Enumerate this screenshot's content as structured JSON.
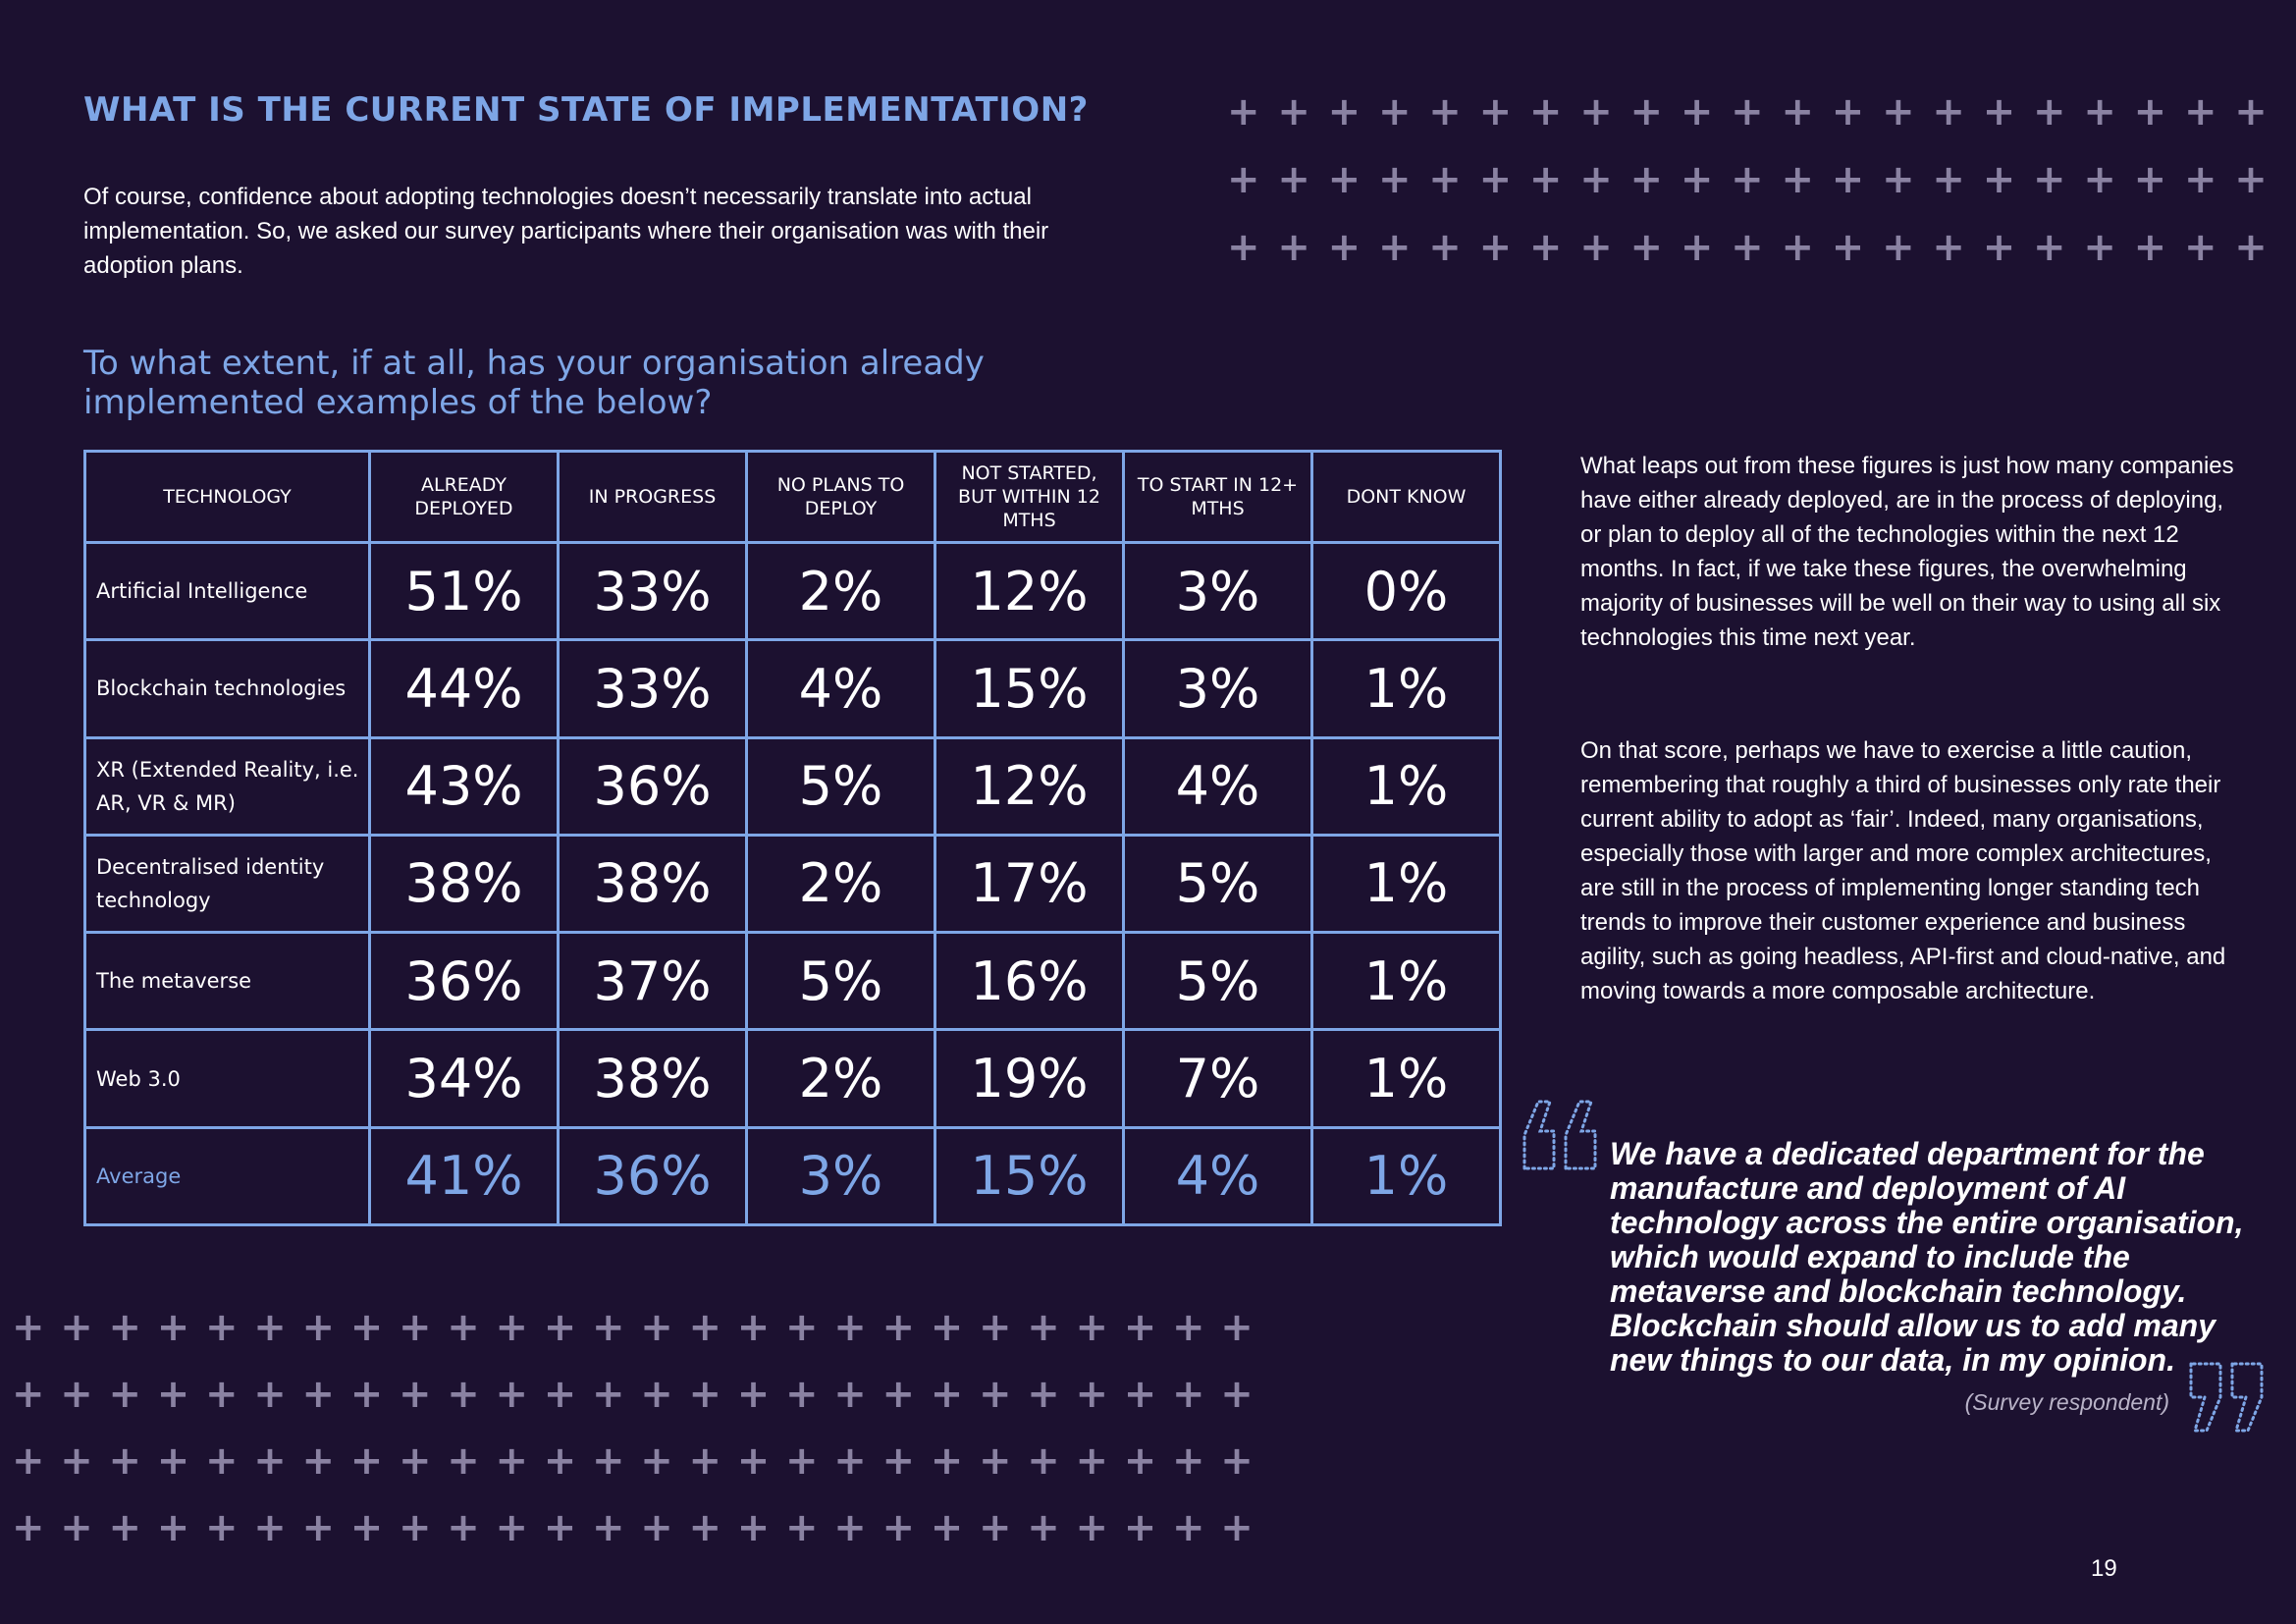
{
  "heading": "WHAT IS THE CURRENT STATE OF IMPLEMENTATION?",
  "intro": "Of course, confidence about adopting technologies doesn’t necessarily translate into actual implementation. So, we asked our survey participants where their organisation was with their adoption plans.",
  "question": "To what extent, if at all, has your organisation already implemented examples of the below?",
  "table": {
    "headers": [
      "TECHNOLOGY",
      "ALREADY DEPLOYED",
      "IN PROGRESS",
      "NO PLANS TO DEPLOY",
      "NOT STARTED, BUT WITHIN 12 MTHS",
      "TO START IN 12+ MTHS",
      "DONT KNOW"
    ],
    "rows": [
      {
        "technology": "Artificial Intelligence",
        "values": [
          "51%",
          "33%",
          "2%",
          "12%",
          "3%",
          "0%"
        ]
      },
      {
        "technology": "Blockchain technologies",
        "values": [
          "44%",
          "33%",
          "4%",
          "15%",
          "3%",
          "1%"
        ]
      },
      {
        "technology": "XR (Extended Reality, i.e. AR, VR & MR)",
        "values": [
          "43%",
          "36%",
          "5%",
          "12%",
          "4%",
          "1%"
        ]
      },
      {
        "technology": "Decentralised identity technology",
        "values": [
          "38%",
          "38%",
          "2%",
          "17%",
          "5%",
          "1%"
        ]
      },
      {
        "technology": "The metaverse",
        "values": [
          "36%",
          "37%",
          "5%",
          "16%",
          "5%",
          "1%"
        ]
      },
      {
        "technology": "Web 3.0",
        "values": [
          "34%",
          "38%",
          "2%",
          "19%",
          "7%",
          "1%"
        ]
      }
    ],
    "average": {
      "technology": "Average",
      "values": [
        "41%",
        "36%",
        "3%",
        "15%",
        "4%",
        "1%"
      ]
    }
  },
  "paragraphs": [
    "What leaps out from these figures is just how many companies have either already deployed, are in the process of deploying, or plan to deploy all of the technologies within the next 12 months. In fact, if we take these figures, the overwhelming majority of businesses will be well on their way to using all six technologies this time next year.",
    "On that score, perhaps we have to exercise a little caution, remembering that roughly a third of businesses only rate their current ability to adopt as ‘fair’. Indeed, many organisations, especially those with larger and more complex architectures, are still in the process of implementing longer standing tech trends to improve their customer experience and business agility, such as going headless, API-first and cloud-native, and moving towards a more composable architecture."
  ],
  "quote": {
    "text": "We have a dedicated department for the manufacture and deployment of AI technology across the entire organisation, which would expand to include the metaverse and blockchain technology. Blockchain should allow us to add many new things to our data, in my opinion.",
    "attribution": "(Survey respondent)"
  },
  "page_number": "19",
  "colors": {
    "background": "#1c1130",
    "accent": "#7ea6e6",
    "plus": "#8a82a2"
  },
  "icons": [
    "plus-pattern",
    "open-quote-icon",
    "close-quote-icon"
  ]
}
